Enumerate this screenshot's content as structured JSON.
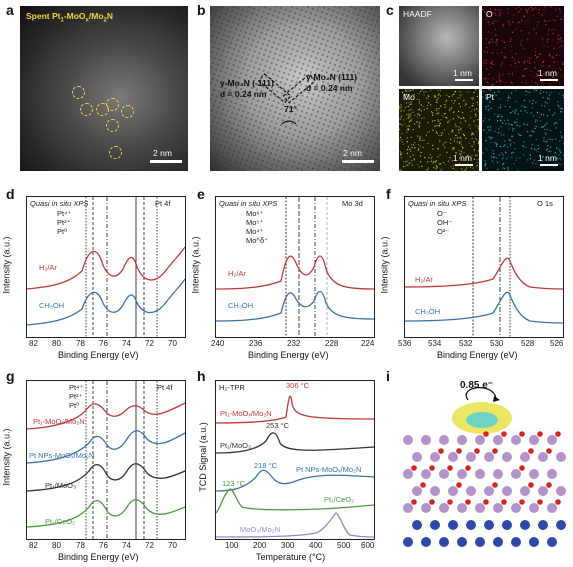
{
  "panels": {
    "a": {
      "letter": "a",
      "title": "Spent Pt$_1$-MoO$_x$/Mo$_2$N",
      "title_html": "Spent Pt",
      "scale": "2 nm"
    },
    "b": {
      "letter": "b",
      "label_left_1": "γ-Mo₂N (-111)",
      "label_left_2": "d = 0.24 nm",
      "label_right_1": "γ-Mo₂N (111)",
      "label_right_2": "d = 0.24 nm",
      "angle": "71°",
      "scale": "2 nm"
    },
    "c": {
      "letter": "c",
      "tiles": [
        {
          "name": "HAADF",
          "scale": "1 nm",
          "color": "#5a5a5a"
        },
        {
          "name": "O",
          "scale": "1 nm",
          "color": "#c0303a"
        },
        {
          "name": "Mo",
          "scale": "1 nm",
          "color": "#c7c43a"
        },
        {
          "name": "Pt",
          "scale": "1 nm",
          "color": "#2ab2b8"
        }
      ]
    },
    "d": {
      "letter": "d",
      "header": "Quasi in situ XPS",
      "core": "Pt 4f",
      "legend": [
        "Pt⁴⁺",
        "Pt²⁺",
        "Pt⁰"
      ],
      "curve1": "H₂/Ar",
      "curve2": "CH₃OH",
      "xlabel": "Binding Energy (eV)",
      "ylabel": "Intensity (a.u.)",
      "xticks": [
        "82",
        "80",
        "78",
        "76",
        "74",
        "72",
        "70"
      ]
    },
    "e": {
      "letter": "e",
      "header": "Quasi in situ XPS",
      "core": "Mo 3d",
      "legend": [
        "Mo⁶⁺",
        "Mo⁵⁺",
        "Mo⁴⁺",
        "Mo^δ⁺"
      ],
      "curve1": "H₂/Ar",
      "curve2": "CH₃OH",
      "xlabel": "Binding Energy (eV)",
      "ylabel": "Intensity (a.u.)",
      "xticks": [
        "240",
        "236",
        "232",
        "228",
        "224"
      ]
    },
    "f": {
      "letter": "f",
      "header": "Quasi in situ XPS",
      "core": "O 1s",
      "legend": [
        "O⁻",
        "OH⁻",
        "O²⁻"
      ],
      "curve1": "H₂/Ar",
      "curve2": "CH₃OH",
      "xlabel": "Binding Energy (eV)",
      "ylabel": "Intensity (a.u.)",
      "xticks": [
        "536",
        "534",
        "532",
        "530",
        "528",
        "526"
      ]
    },
    "g": {
      "letter": "g",
      "core": "Pt 4f",
      "legend": [
        "Pt⁴⁺",
        "Pt²⁺",
        "Pt⁰"
      ],
      "curves": [
        "Pt₁-MoOₓ/Mo₂N",
        "Pt NPs-MoOₓ/Mo₂N",
        "Pt₁/MoO₃",
        "Pt₁/CeO₂"
      ],
      "xlabel": "Binding Energy (eV)",
      "ylabel": "Intensity (a.u.)",
      "xticks": [
        "82",
        "80",
        "78",
        "76",
        "74",
        "72",
        "70"
      ]
    },
    "h": {
      "letter": "h",
      "header": "H₂-TPR",
      "curves": [
        {
          "label": "Pt₁-MoOₓ/Mo₂N",
          "peak": "306 °C",
          "color": "#c0393b"
        },
        {
          "label": "Pt₁/MoO₃",
          "peak": "253 °C",
          "color": "#333333"
        },
        {
          "label": "Pt NPs-MoOₓ/Mo₂N",
          "peak": "218 °C",
          "color": "#3d72a8"
        },
        {
          "label": "Pt₁/CeO₂",
          "peak": "123 °C",
          "color": "#4c9a42"
        },
        {
          "label": "MoO₃/Mo₂N",
          "peak": "",
          "color": "#9a86c8"
        }
      ],
      "xlabel": "Temperature (°C)",
      "ylabel": "TCD Signal (a.u.)",
      "xticks": [
        "100",
        "200",
        "300",
        "400",
        "500",
        "600"
      ]
    },
    "i": {
      "letter": "i",
      "charge": "0.85 e⁻"
    }
  }
}
